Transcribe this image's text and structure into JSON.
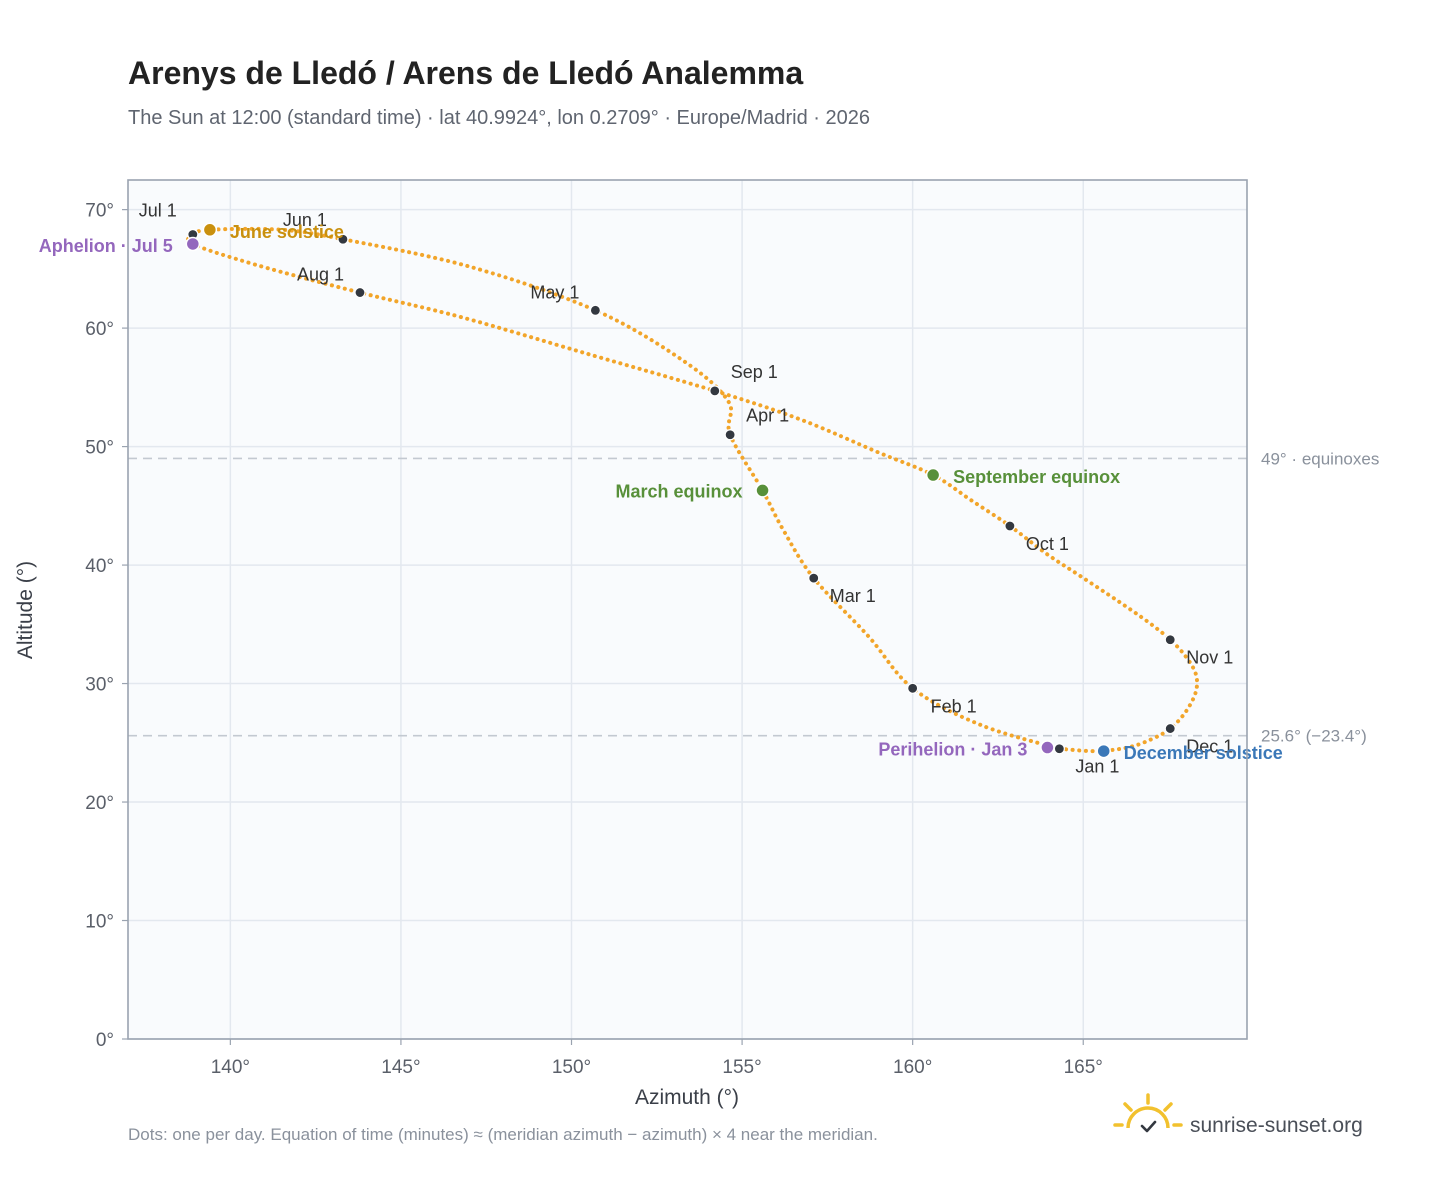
{
  "title": "Arenys de Lledó / Arens de Lledó Analemma",
  "subtitle": "The Sun at 12:00 (standard time) · lat 40.9924°, lon 0.2709° · Europe/Madrid · 2026",
  "footnote": "Dots: one per day. Equation of time (minutes) ≈ (meridian azimuth − azimuth) × 4 near the meridian.",
  "brand": "sunrise-sunset.org",
  "colors": {
    "curve": "#f2a52a",
    "month_dot": "#333840",
    "june_solstice": "#c9900e",
    "december_solstice": "#3b78b8",
    "equinox": "#58903a",
    "apsis": "#9467bd",
    "plot_bg": "#f9fbfd",
    "grid": "#e3e8ef",
    "frame": "#9aa3b0",
    "reference_line": "#c3c9d1"
  },
  "chart_data": {
    "type": "scatter",
    "title": "Arenys de Lledó / Arens de Lledó Analemma",
    "xlabel": "Azimuth (°)",
    "ylabel": "Altitude (°)",
    "xlim": [
      137,
      169.8
    ],
    "ylim": [
      0,
      72.5
    ],
    "x_ticks": [
      140,
      145,
      150,
      155,
      160,
      165
    ],
    "y_ticks": [
      0,
      10,
      20,
      30,
      40,
      50,
      60,
      70
    ],
    "x_tick_labels": [
      "140°",
      "145°",
      "150°",
      "155°",
      "160°",
      "165°"
    ],
    "y_tick_labels": [
      "0°",
      "10°",
      "20°",
      "30°",
      "40°",
      "50°",
      "60°",
      "70°"
    ],
    "grid": true,
    "reference_lines": [
      {
        "y": 49,
        "label": "49° · equinoxes"
      },
      {
        "y": 25.6,
        "label": "25.6° (−23.4°)"
      }
    ],
    "series": [
      {
        "points": [
          [
            164.3,
            24.5
          ],
          [
            165.35,
            24.3
          ],
          [
            166.3,
            24.6
          ],
          [
            167.0,
            25.3
          ],
          [
            167.55,
            26.2
          ],
          [
            168.0,
            27.6
          ],
          [
            168.3,
            29.3
          ],
          [
            168.3,
            30.8
          ],
          [
            168.0,
            32.3
          ],
          [
            167.55,
            33.7
          ],
          [
            166.9,
            35.2
          ],
          [
            166.0,
            37.0
          ],
          [
            164.9,
            39.1
          ],
          [
            163.9,
            41.0
          ],
          [
            162.85,
            43.3
          ],
          [
            161.7,
            45.5
          ],
          [
            160.6,
            47.6
          ],
          [
            159.0,
            49.5
          ],
          [
            156.7,
            52.3
          ],
          [
            154.2,
            54.7
          ],
          [
            150.5,
            57.8
          ],
          [
            146.8,
            60.9
          ],
          [
            143.8,
            63.0
          ],
          [
            140.8,
            65.3
          ],
          [
            138.9,
            67.1
          ],
          [
            138.95,
            67.9
          ],
          [
            139.4,
            68.3
          ],
          [
            141.5,
            68.3
          ],
          [
            143.3,
            67.5
          ],
          [
            147.0,
            65.2
          ],
          [
            150.7,
            61.5
          ],
          [
            153.3,
            57.2
          ],
          [
            154.6,
            53.8
          ],
          [
            154.65,
            51.0
          ],
          [
            155.6,
            46.3
          ],
          [
            156.2,
            43.0
          ],
          [
            157.1,
            38.9
          ],
          [
            158.7,
            34.0
          ],
          [
            160.0,
            29.6
          ],
          [
            162.0,
            26.5
          ],
          [
            164.3,
            24.5
          ]
        ]
      }
    ],
    "month_markers": [
      {
        "label": "Jan 1",
        "x": 164.3,
        "y": 24.5
      },
      {
        "label": "Feb 1",
        "x": 160.0,
        "y": 29.6
      },
      {
        "label": "Mar 1",
        "x": 157.1,
        "y": 38.9
      },
      {
        "label": "Apr 1",
        "x": 154.65,
        "y": 51.0
      },
      {
        "label": "May 1",
        "x": 150.7,
        "y": 61.5
      },
      {
        "label": "Jun 1",
        "x": 143.3,
        "y": 67.5
      },
      {
        "label": "Jul 1",
        "x": 138.9,
        "y": 67.9
      },
      {
        "label": "Aug 1",
        "x": 143.8,
        "y": 63.0
      },
      {
        "label": "Sep 1",
        "x": 154.2,
        "y": 54.7
      },
      {
        "label": "Oct 1",
        "x": 162.85,
        "y": 43.3
      },
      {
        "label": "Nov 1",
        "x": 167.55,
        "y": 33.7
      },
      {
        "label": "Dec 1",
        "x": 167.55,
        "y": 26.2
      }
    ],
    "events": [
      {
        "label": "June solstice",
        "x": 139.4,
        "y": 68.3,
        "color": "#c9900e"
      },
      {
        "label": "Aphelion · Jul 5",
        "x": 138.9,
        "y": 67.1,
        "color": "#9467bd"
      },
      {
        "label": "March equinox",
        "x": 155.6,
        "y": 46.3,
        "color": "#58903a"
      },
      {
        "label": "September equinox",
        "x": 160.6,
        "y": 47.6,
        "color": "#58903a"
      },
      {
        "label": "Perihelion · Jan 3",
        "x": 163.95,
        "y": 24.6,
        "color": "#9467bd"
      },
      {
        "label": "December solstice",
        "x": 165.6,
        "y": 24.3,
        "color": "#3b78b8"
      }
    ]
  }
}
